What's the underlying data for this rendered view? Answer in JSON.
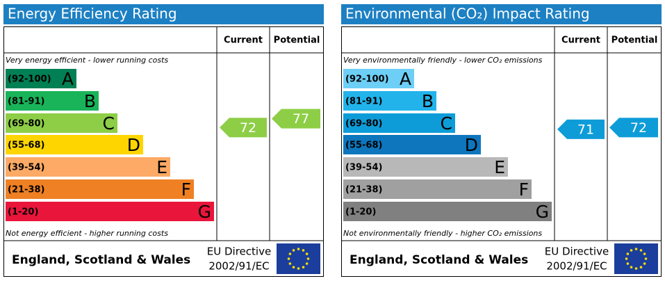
{
  "panels": [
    {
      "title": "Energy Efficiency Rating",
      "header": {
        "current": "Current",
        "potential": "Potential"
      },
      "top_note": "Very energy efficient - lower running costs",
      "bottom_note": "Not energy efficient - higher running costs",
      "bands": [
        {
          "range": "(92-100)",
          "letter": "A",
          "color": "#008054"
        },
        {
          "range": "(81-91)",
          "letter": "B",
          "color": "#19b459"
        },
        {
          "range": "(69-80)",
          "letter": "C",
          "color": "#8dce46"
        },
        {
          "range": "(55-68)",
          "letter": "D",
          "color": "#ffd500"
        },
        {
          "range": "(39-54)",
          "letter": "E",
          "color": "#fcaa65"
        },
        {
          "range": "(21-38)",
          "letter": "F",
          "color": "#ef8023"
        },
        {
          "range": "(1-20)",
          "letter": "G",
          "color": "#e9153b"
        }
      ],
      "current": 72,
      "potential": 77,
      "footer": {
        "region": "England, Scotland & Wales",
        "directive_line1": "EU Directive",
        "directive_line2": "2002/91/EC"
      }
    },
    {
      "title": "Environmental (CO₂) Impact Rating",
      "header": {
        "current": "Current",
        "potential": "Potential"
      },
      "top_note": "Very environmentally friendly - lower CO₂ emissions",
      "bottom_note": "Not environmentally friendly - higher CO₂ emissions",
      "bands": [
        {
          "range": "(92-100)",
          "letter": "A",
          "color": "#6dcff6"
        },
        {
          "range": "(81-91)",
          "letter": "B",
          "color": "#22b3ea"
        },
        {
          "range": "(69-80)",
          "letter": "C",
          "color": "#0e9cd8"
        },
        {
          "range": "(55-68)",
          "letter": "D",
          "color": "#0d76bd"
        },
        {
          "range": "(39-54)",
          "letter": "E",
          "color": "#b8b8b8"
        },
        {
          "range": "(21-38)",
          "letter": "F",
          "color": "#a0a0a0"
        },
        {
          "range": "(1-20)",
          "letter": "G",
          "color": "#808080"
        }
      ],
      "current": 71,
      "potential": 72,
      "footer": {
        "region": "England, Scotland & Wales",
        "directive_line1": "EU Directive",
        "directive_line2": "2002/91/EC"
      }
    }
  ]
}
